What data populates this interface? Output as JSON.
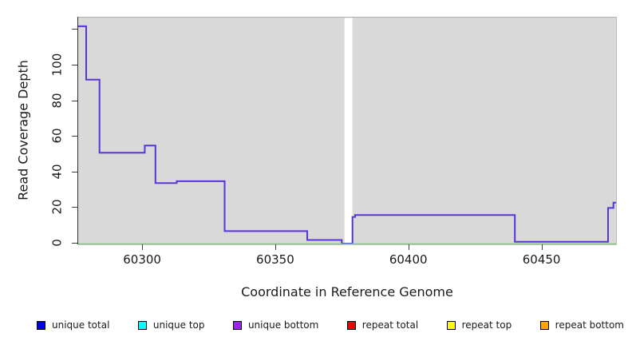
{
  "chart_data": {
    "type": "line",
    "subtype": "step-coverage",
    "title": "",
    "xlabel": "Coordinate in Reference Genome",
    "ylabel": "Read Coverage Depth",
    "xlim": [
      60276,
      60478
    ],
    "ylim": [
      0,
      127
    ],
    "x_ticks": [
      60300,
      60350,
      60400,
      60450
    ],
    "y_ticks": [
      0,
      20,
      40,
      60,
      80,
      100
    ],
    "y_ticks_unlabeled": [
      120
    ],
    "grid": false,
    "panel_background": "#d9d9d9",
    "gap_region": {
      "x_start": 60376,
      "x_end": 60379,
      "color": "#ffffff"
    },
    "series": [
      {
        "name": "coverage-step-line",
        "type": "step",
        "color": "#5835d8",
        "points": [
          [
            60276,
            122
          ],
          [
            60279,
            92
          ],
          [
            60284,
            51
          ],
          [
            60301,
            55
          ],
          [
            60305,
            34
          ],
          [
            60313,
            35
          ],
          [
            60331,
            7
          ],
          [
            60362,
            2
          ],
          [
            60375,
            0
          ],
          [
            60379,
            15
          ],
          [
            60380,
            16
          ],
          [
            60440,
            1
          ],
          [
            60475,
            20
          ],
          [
            60477,
            23
          ]
        ],
        "x_end": 60478
      },
      {
        "name": "zero-baseline",
        "type": "hline",
        "color": "#7fc97f",
        "y": 0
      }
    ],
    "legend_position": "bottom",
    "legend": [
      {
        "label": "unique total",
        "color": "#0000ee"
      },
      {
        "label": "unique top",
        "color": "#00ffff"
      },
      {
        "label": "unique bottom",
        "color": "#a020f0"
      },
      {
        "label": "repeat total",
        "color": "#ee0000"
      },
      {
        "label": "repeat top",
        "color": "#ffff00"
      },
      {
        "label": "repeat bottom",
        "color": "#ffa500"
      }
    ]
  }
}
